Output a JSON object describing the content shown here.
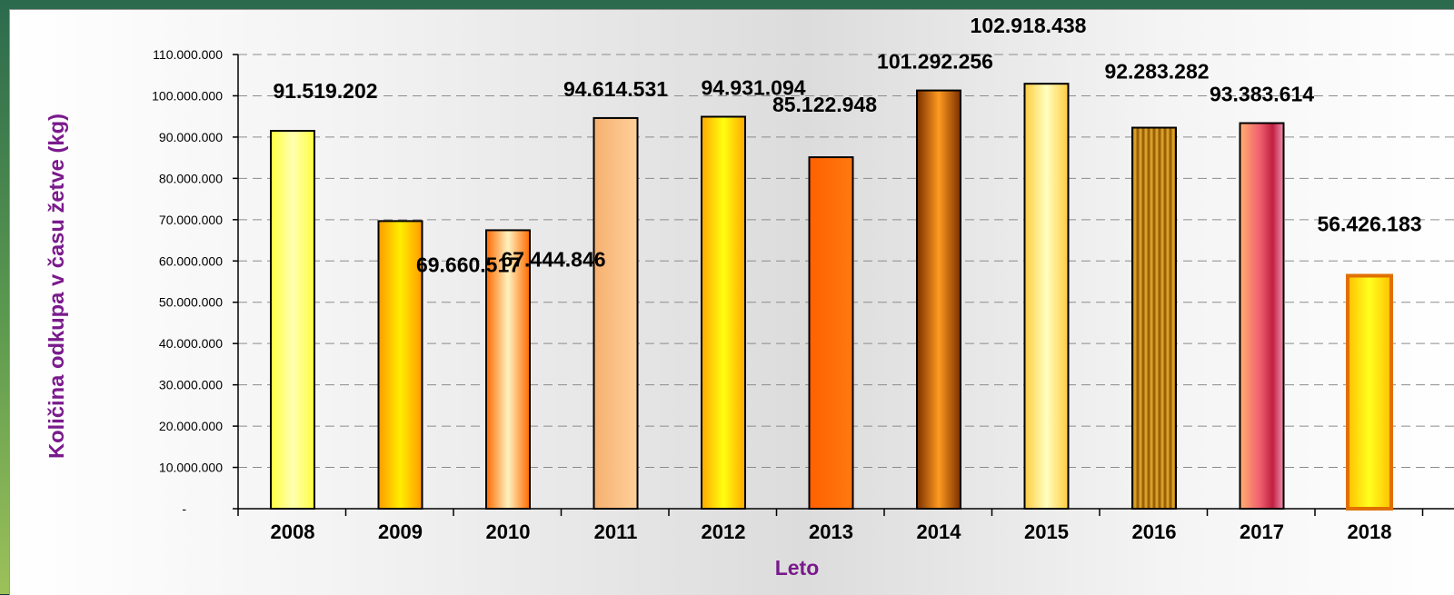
{
  "chart_data": {
    "type": "bar",
    "title": "",
    "xlabel": "Leto",
    "ylabel": "Količina odkupa v času žetve (kg)",
    "ylim": [
      0,
      110000000
    ],
    "yticks": [
      0,
      10000000,
      20000000,
      30000000,
      40000000,
      50000000,
      60000000,
      70000000,
      80000000,
      90000000,
      100000000,
      110000000
    ],
    "ytick_labels": [
      "-",
      "10.000.000",
      "20.000.000",
      "30.000.000",
      "40.000.000",
      "50.000.000",
      "60.000.000",
      "70.000.000",
      "80.000.000",
      "90.000.000",
      "100.000.000",
      "110.000.000"
    ],
    "grid": true,
    "legend": "none",
    "categories": [
      "2008",
      "2009",
      "2010",
      "2011",
      "2012",
      "2013",
      "2014",
      "2015",
      "2016",
      "2017",
      "2018"
    ],
    "values": [
      91519202,
      69660517,
      67444846,
      94614531,
      94931094,
      85122948,
      101292256,
      102918438,
      92283282,
      93383614,
      56426183
    ],
    "value_labels": [
      "91.519.202",
      "69.660.517",
      "67.444.846",
      "94.614.531",
      "94.931.094",
      "85.122.948",
      "101.292.256",
      "102.918.438",
      "92.283.282",
      "93.383.614",
      "56.426.183"
    ],
    "bar_colors": [
      "#ffff66",
      "#ffd000",
      "#ff9a40",
      "#ffc890",
      "#ffd000",
      "#ff6e00",
      "#8a3c00",
      "#ffe080",
      "#a06000",
      "#e0506a",
      "#ffd000"
    ],
    "colors": {
      "axis_title": "#7a1a8c",
      "gridline": "#8c8c8c",
      "bar_outline": "#000000",
      "highlight_outline": "#e07000"
    }
  }
}
